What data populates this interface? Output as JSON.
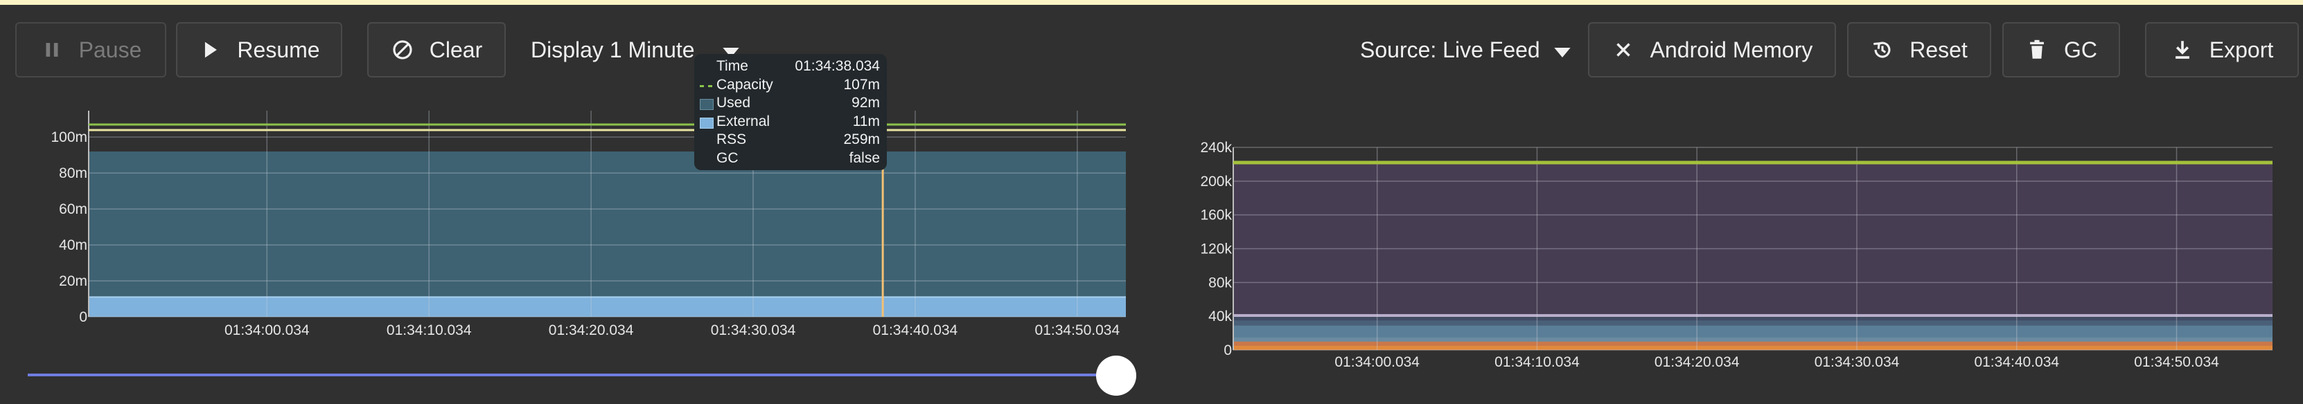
{
  "toolbar": {
    "pause_label": "Pause",
    "resume_label": "Resume",
    "clear_label": "Clear",
    "display_label": "Display 1 Minute",
    "source_label": "Source: Live Feed",
    "android_memory_label": "Android Memory",
    "reset_label": "Reset",
    "gc_label": "GC",
    "export_label": "Export"
  },
  "icons": {
    "pause": "pause-icon",
    "resume": "play-icon",
    "clear": "block-icon",
    "display_dropdown": "caret-down-icon",
    "source_dropdown": "caret-down-icon",
    "android_memory": "close-icon",
    "reset": "history-icon",
    "gc": "trash-icon",
    "export": "download-icon"
  },
  "colors": {
    "background": "#303030",
    "capacity": "#8bc34a",
    "used": "#3e6272",
    "external": "#7fb2dc",
    "cursor": "#f3c074",
    "slider_track": "#6f7de0",
    "right_fill": "#473d52",
    "right_top_line": "#a4c23c",
    "right_bottom": "#e08a3c"
  },
  "tooltip": {
    "rows": [
      {
        "label": "Time",
        "value": "01:34:38.034",
        "swatch": "none"
      },
      {
        "label": "Capacity",
        "value": "107m",
        "swatch": "dashed-green"
      },
      {
        "label": "Used",
        "value": "92m",
        "swatch": "dark-blue"
      },
      {
        "label": "External",
        "value": "11m",
        "swatch": "light-blue"
      },
      {
        "label": "RSS",
        "value": "259m",
        "swatch": "none"
      },
      {
        "label": "GC",
        "value": "false",
        "swatch": "none"
      }
    ]
  },
  "chart_data": [
    {
      "type": "area",
      "title": "",
      "y_ticks": [
        "0",
        "20m",
        "40m",
        "60m",
        "80m",
        "100m"
      ],
      "y_tick_values": [
        0,
        20,
        40,
        60,
        80,
        100
      ],
      "ylim": [
        0,
        107
      ],
      "x_ticks": [
        "01:34:00.034",
        "01:34:10.034",
        "01:34:20.034",
        "01:34:30.034",
        "01:34:40.034",
        "01:34:50.034"
      ],
      "x_tick_values": [
        60,
        70,
        80,
        90,
        100,
        110
      ],
      "x_range": [
        49,
        113
      ],
      "units": "MB",
      "grid": true,
      "series": [
        {
          "name": "Capacity",
          "values": [
            107,
            107
          ],
          "style": "line"
        },
        {
          "name": "Used",
          "values": [
            92,
            92
          ],
          "style": "area"
        },
        {
          "name": "External",
          "values": [
            11,
            11
          ],
          "style": "area"
        }
      ],
      "cursor_x": 98
    },
    {
      "type": "area",
      "title": "",
      "y_ticks": [
        "0",
        "40k",
        "80k",
        "120k",
        "160k",
        "200k",
        "240k"
      ],
      "y_tick_values": [
        0,
        40,
        80,
        120,
        160,
        200,
        240
      ],
      "ylim": [
        0,
        240
      ],
      "x_ticks": [
        "01:34:00.034",
        "01:34:10.034",
        "01:34:20.034",
        "01:34:30.034",
        "01:34:40.034",
        "01:34:50.034"
      ],
      "x_tick_values": [
        60,
        70,
        80,
        90,
        100,
        110
      ],
      "x_range": [
        51,
        116
      ],
      "units": "thousands",
      "grid": true,
      "series_values": [
        222,
        41,
        35,
        29,
        15,
        10,
        5
      ]
    }
  ],
  "slider": {
    "value": 1.0
  }
}
